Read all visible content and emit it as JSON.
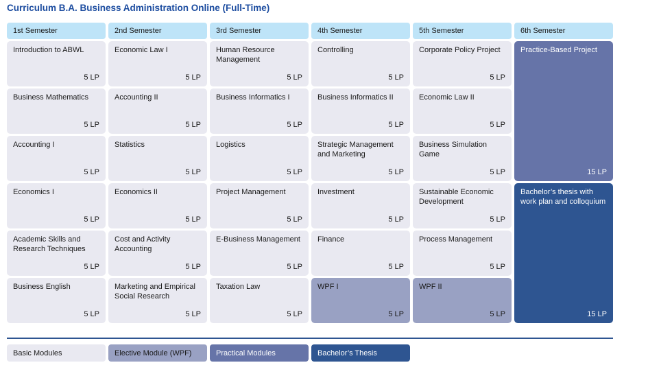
{
  "title": "Curriculum B.A. Business Administration Online (Full-Time)",
  "colors": {
    "title": "#1d4da0",
    "header_bg": "#bee4f8",
    "basic_bg": "#e9e9f1",
    "elective_bg": "#99a1c3",
    "practical_bg": "#6674a8",
    "thesis_bg": "#2e5591",
    "text_dark": "#1a1a1a",
    "text_light": "#ffffff",
    "divider": "#2e5591"
  },
  "semesters": [
    {
      "label": "1st Semester",
      "modules": [
        {
          "name": "Introduction to ABWL",
          "lp": "5 LP",
          "type": "basic"
        },
        {
          "name": "Business Mathematics",
          "lp": "5 LP",
          "type": "basic"
        },
        {
          "name": "Accounting I",
          "lp": "5 LP",
          "type": "basic"
        },
        {
          "name": "Economics I",
          "lp": "5 LP",
          "type": "basic"
        },
        {
          "name": "Academic Skills and Research Techniques",
          "lp": "5 LP",
          "type": "basic"
        },
        {
          "name": "Business English",
          "lp": "5 LP",
          "type": "basic"
        }
      ]
    },
    {
      "label": "2nd Semester",
      "modules": [
        {
          "name": "Economic Law I",
          "lp": "5 LP",
          "type": "basic"
        },
        {
          "name": "Accounting II",
          "lp": "5 LP",
          "type": "basic"
        },
        {
          "name": "Statistics",
          "lp": "5 LP",
          "type": "basic"
        },
        {
          "name": "Economics II",
          "lp": "5 LP",
          "type": "basic"
        },
        {
          "name": "Cost and Activity Accounting",
          "lp": "5 LP",
          "type": "basic"
        },
        {
          "name": "Marketing and Empirical Social Research",
          "lp": "5 LP",
          "type": "basic"
        }
      ]
    },
    {
      "label": "3rd Semester",
      "modules": [
        {
          "name": "Human Resource Management",
          "lp": "5 LP",
          "type": "basic"
        },
        {
          "name": "Business Informatics I",
          "lp": "5 LP",
          "type": "basic"
        },
        {
          "name": "Logistics",
          "lp": "5 LP",
          "type": "basic"
        },
        {
          "name": "Project Management",
          "lp": "5 LP",
          "type": "basic"
        },
        {
          "name": "E-Business Management",
          "lp": "5 LP",
          "type": "basic"
        },
        {
          "name": "Taxation Law",
          "lp": "5 LP",
          "type": "basic"
        }
      ]
    },
    {
      "label": "4th Semester",
      "modules": [
        {
          "name": "Controlling",
          "lp": "5 LP",
          "type": "basic"
        },
        {
          "name": "Business Informatics II",
          "lp": "5 LP",
          "type": "basic"
        },
        {
          "name": "Strategic Management and Marketing",
          "lp": "5 LP",
          "type": "basic"
        },
        {
          "name": "Investment",
          "lp": "5 LP",
          "type": "basic"
        },
        {
          "name": "Finance",
          "lp": "5 LP",
          "type": "basic"
        },
        {
          "name": "WPF I",
          "lp": "5 LP",
          "type": "elective"
        }
      ]
    },
    {
      "label": "5th Semester",
      "modules": [
        {
          "name": "Corporate Policy Project",
          "lp": "5 LP",
          "type": "basic"
        },
        {
          "name": "Economic Law II",
          "lp": "5 LP",
          "type": "basic"
        },
        {
          "name": "Business Simulation Game",
          "lp": "5 LP",
          "type": "basic"
        },
        {
          "name": "Sustainable Economic Development",
          "lp": "5 LP",
          "type": "basic"
        },
        {
          "name": "Process Management",
          "lp": "5 LP",
          "type": "basic"
        },
        {
          "name": "WPF II",
          "lp": "5 LP",
          "type": "elective"
        }
      ]
    },
    {
      "label": "6th Semester",
      "modules": [
        {
          "name": "Practice-Based Project",
          "lp": "15 LP",
          "type": "practical",
          "span": 3
        },
        {
          "name": "Bachelor’s thesis with work plan and colloquium",
          "lp": "15 LP",
          "type": "thesis",
          "span": 3
        }
      ]
    }
  ],
  "legend": [
    {
      "label": "Basic Modules",
      "type": "basic"
    },
    {
      "label": "Elective Module (WPF)",
      "type": "elective"
    },
    {
      "label": "Practical Modules",
      "type": "practical"
    },
    {
      "label": "Bachelor’s Thesis",
      "type": "thesis"
    }
  ]
}
